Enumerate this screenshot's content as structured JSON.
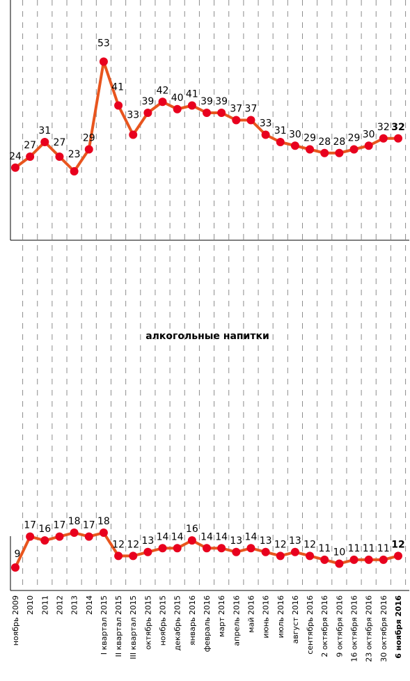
{
  "chart_data": [
    {
      "type": "line",
      "title": "",
      "xlabel": "",
      "ylabel": "",
      "series": [
        {
          "values": [
            24,
            27,
            31,
            27,
            23,
            29,
            53,
            41,
            33,
            39,
            42,
            40,
            41,
            39,
            39,
            37,
            37,
            33,
            31,
            30,
            29,
            28,
            28,
            29,
            30,
            32,
            32
          ],
          "color": "#E8551E",
          "marker_color": "#E8001E"
        }
      ],
      "bold_last": true
    },
    {
      "type": "line",
      "title": "алкогольные напитки",
      "xlabel": "",
      "ylabel": "",
      "categories": [
        "ноябрь 2009",
        "2010",
        "2011",
        "2012",
        "2013",
        "2014",
        "I квартал 2015",
        "II квартал 2015",
        "III квартал 2015",
        "октябрь 2015",
        "ноябрь 2015",
        "декабрь 2015",
        "январь 2016",
        "февраль 2016",
        "март 2016",
        "апрель 2016",
        "май 2016",
        "июнь 2016",
        "июль 2016",
        "август 2016",
        "сентябрь 2016",
        "2 октября 2016",
        "9 октября 2016",
        "16 октября 2016",
        "23 октября 2016",
        "30 октября 2016",
        "6 ноября 2016"
      ],
      "series": [
        {
          "values": [
            9,
            17,
            16,
            17,
            18,
            17,
            18,
            12,
            12,
            13,
            14,
            14,
            16,
            14,
            14,
            13,
            14,
            13,
            12,
            13,
            12,
            11,
            10,
            11,
            11,
            11,
            12
          ],
          "color": "#E8551E",
          "marker_color": "#E8001E"
        }
      ],
      "bold_last": true
    }
  ]
}
